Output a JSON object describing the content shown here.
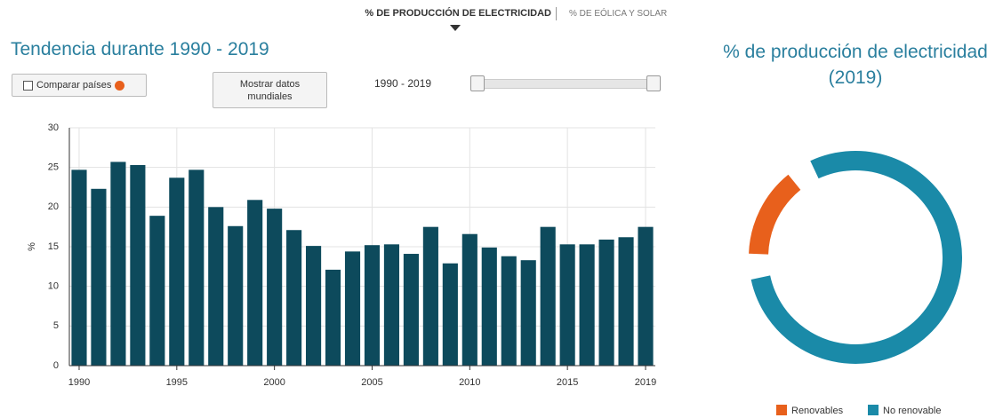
{
  "tabs": [
    "% DE PRODUCCIÓN DE ELECTRICIDAD",
    "% DE EÓLICA Y SOLAR"
  ],
  "controls": {
    "compare": "Comparar países",
    "world": "Mostrar datos mundiales",
    "range": "1990 - 2019"
  },
  "chart_data": [
    {
      "type": "bar",
      "title": "Tendencia durante 1990 - 2019",
      "y_label": "%",
      "x": [
        1990,
        1991,
        1992,
        1993,
        1994,
        1995,
        1996,
        1997,
        1998,
        1999,
        2000,
        2001,
        2002,
        2003,
        2004,
        2005,
        2006,
        2007,
        2008,
        2009,
        2010,
        2011,
        2012,
        2013,
        2014,
        2015,
        2016,
        2017,
        2018,
        2019
      ],
      "values": [
        24.7,
        22.3,
        25.7,
        25.3,
        18.9,
        23.7,
        24.7,
        20.0,
        17.6,
        20.9,
        19.8,
        17.1,
        15.1,
        12.1,
        14.4,
        15.2,
        15.3,
        14.1,
        17.5,
        12.9,
        16.6,
        14.9,
        13.8,
        13.3,
        17.5,
        15.3,
        15.3,
        15.9,
        16.2,
        17.5
      ],
      "color": "#0d4a5c",
      "xlim": [
        1989.5,
        2019.5
      ],
      "xticks": [
        1990,
        1995,
        2000,
        2005,
        2010,
        2015,
        2019
      ],
      "ylim": [
        0,
        30
      ],
      "yticks": [
        0,
        5,
        10,
        15,
        20,
        25,
        30
      ],
      "grid": true
    },
    {
      "type": "donut",
      "title": "% de producción de electricidad (2019)",
      "categories": [
        "Renovables",
        "No renovable"
      ],
      "values": [
        17.5,
        82.5
      ],
      "colors": [
        "#e8601c",
        "#1a8aa8"
      ]
    }
  ]
}
